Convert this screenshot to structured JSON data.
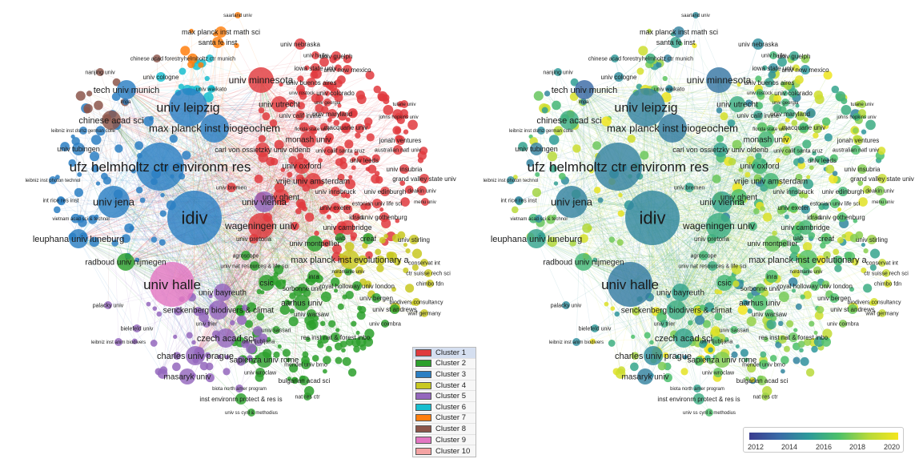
{
  "clusters": [
    {
      "label": "Cluster 1",
      "color": "#e03a3e"
    },
    {
      "label": "Cluster 2",
      "color": "#2ca02c"
    },
    {
      "label": "Cluster 3",
      "color": "#2b7fc3"
    },
    {
      "label": "Cluster 4",
      "color": "#c8c820"
    },
    {
      "label": "Cluster 5",
      "color": "#9467bd"
    },
    {
      "label": "Cluster 6",
      "color": "#17becf"
    },
    {
      "label": "Cluster 7",
      "color": "#ff7f0e"
    },
    {
      "label": "Cluster 8",
      "color": "#8c564b"
    },
    {
      "label": "Cluster 9",
      "color": "#e377c2"
    },
    {
      "label": "Cluster 10",
      "color": "#f4a3a3"
    }
  ],
  "year_legend": {
    "ticks": [
      "2012",
      "2014",
      "2016",
      "2018",
      "2020"
    ],
    "colors": [
      "#3b3d8f",
      "#3a6aa6",
      "#2d9a9a",
      "#4cc06a",
      "#b6d93a",
      "#f4e61d"
    ]
  },
  "nodes": [
    {
      "label": "idiv",
      "cluster": 3,
      "year": 0.32
    },
    {
      "label": "ufz helmholtz ctr environm res",
      "cluster": 3,
      "year": 0.3
    },
    {
      "label": "univ leipzig",
      "cluster": 3,
      "year": 0.3
    },
    {
      "label": "univ halle",
      "cluster": 9,
      "year": 0.27
    },
    {
      "label": "univ jena",
      "cluster": 3,
      "year": 0.3
    },
    {
      "label": "max planck inst biogeochem",
      "cluster": 3,
      "year": 0.28
    },
    {
      "label": "univ minnesota",
      "cluster": 1,
      "year": 0.25
    },
    {
      "label": "wageningen univ",
      "cluster": 1,
      "year": 0.5
    },
    {
      "label": "univ vienna",
      "cluster": 5,
      "year": 0.45
    },
    {
      "label": "max planck inst evolutionary a",
      "cluster": 4,
      "year": 0.62
    },
    {
      "label": "tech univ munich",
      "cluster": 3,
      "year": 0.2
    },
    {
      "label": "chinese acad sci",
      "cluster": 8,
      "year": 0.5
    },
    {
      "label": "leuphana univ luneburg",
      "cluster": 3,
      "year": 0.45
    },
    {
      "label": "radboud univ nijmegen",
      "cluster": 2,
      "year": 0.55
    },
    {
      "label": "senckenberg biodivers & climat",
      "cluster": 5,
      "year": 0.5
    },
    {
      "label": "czech acad sci",
      "cluster": 5,
      "year": 0.45
    },
    {
      "label": "charles univ prague",
      "cluster": 5,
      "year": 0.35
    },
    {
      "label": "univ bayreuth",
      "cluster": 5,
      "year": 0.45
    },
    {
      "label": "univ oxford",
      "cluster": 1,
      "year": 0.55
    },
    {
      "label": "vrije univ amsterdam",
      "cluster": 1,
      "year": 0.55
    },
    {
      "label": "monash univ",
      "cluster": 1,
      "year": 0.55
    },
    {
      "label": "univ ghent",
      "cluster": 1,
      "year": 0.6
    },
    {
      "label": "univ utrecht",
      "cluster": 1,
      "year": 0.5
    },
    {
      "label": "univ cambridge",
      "cluster": 1,
      "year": 0.55
    },
    {
      "label": "univ montpellier",
      "cluster": 2,
      "year": 0.65
    },
    {
      "label": "aarhus univ",
      "cluster": 2,
      "year": 0.6
    },
    {
      "label": "csic",
      "cluster": 2,
      "year": 0.55
    },
    {
      "label": "inra",
      "cluster": 2,
      "year": 0.6
    },
    {
      "label": "sapienza univ rome",
      "cluster": 2,
      "year": 0.7
    },
    {
      "label": "masaryk univ",
      "cluster": 5,
      "year": 0.3
    },
    {
      "label": "carl von ossietzky univ oldenb",
      "cluster": 1,
      "year": 0.45
    },
    {
      "label": "univ tubingen",
      "cluster": 3,
      "year": 0.3
    },
    {
      "label": "max planck inst math sci",
      "cluster": 7,
      "year": 0.3
    },
    {
      "label": "santa fe inst",
      "cluster": 7,
      "year": 0.45
    },
    {
      "label": "univ nebraska",
      "cluster": 1,
      "year": 0.35
    },
    {
      "label": "univ guelph",
      "cluster": 1,
      "year": 0.45
    },
    {
      "label": "iowa state univ",
      "cluster": 1,
      "year": 0.35
    },
    {
      "label": "univ new mexico",
      "cluster": 1,
      "year": 0.4
    },
    {
      "label": "univ buenos aires",
      "cluster": 1,
      "year": 0.45
    },
    {
      "label": "univ colorado",
      "cluster": 1,
      "year": 0.5
    },
    {
      "label": "univ maryland",
      "cluster": 1,
      "year": 0.5
    },
    {
      "label": "univ calif irvine",
      "cluster": 1,
      "year": 0.45
    },
    {
      "label": "macquarie univ",
      "cluster": 1,
      "year": 0.55
    },
    {
      "label": "jonah ventures",
      "cluster": 1,
      "year": 0.8
    },
    {
      "label": "australian natl univ",
      "cluster": 1,
      "year": 0.6
    },
    {
      "label": "univ calif santa cruz",
      "cluster": 1,
      "year": 0.55
    },
    {
      "label": "univ leeds",
      "cluster": 1,
      "year": 0.55
    },
    {
      "label": "univ insubria",
      "cluster": 1,
      "year": 0.7
    },
    {
      "label": "grand valley state univ",
      "cluster": 1,
      "year": 0.85
    },
    {
      "label": "univ edinburgh",
      "cluster": 1,
      "year": 0.55
    },
    {
      "label": "deakin univ",
      "cluster": 1,
      "year": 0.7
    },
    {
      "label": "univ innsbruck",
      "cluster": 1,
      "year": 0.5
    },
    {
      "label": "estonian univ life sci",
      "cluster": 1,
      "year": 0.6
    },
    {
      "label": "univ exeter",
      "cluster": 1,
      "year": 0.6
    },
    {
      "label": "idrad",
      "cluster": 1,
      "year": 0.7
    },
    {
      "label": "univ gothenburg",
      "cluster": 1,
      "year": 0.6
    },
    {
      "label": "uab",
      "cluster": 2,
      "year": 0.55
    },
    {
      "label": "creaf",
      "cluster": 2,
      "year": 0.6
    },
    {
      "label": "univ stirling",
      "cluster": 4,
      "year": 0.75
    },
    {
      "label": "conservat int",
      "cluster": 4,
      "year": 0.85
    },
    {
      "label": "ctr suisse rech sci",
      "cluster": 4,
      "year": 0.85
    },
    {
      "label": "chimbo fdn",
      "cluster": 4,
      "year": 0.9
    },
    {
      "label": "biodivers consultancy",
      "cluster": 4,
      "year": 0.9
    },
    {
      "label": "wwf germany",
      "cluster": 4,
      "year": 0.85
    },
    {
      "label": "royal holloway univ london",
      "cluster": 2,
      "year": 0.6
    },
    {
      "label": "univ bergen",
      "cluster": 2,
      "year": 0.6
    },
    {
      "label": "univ st andrews",
      "cluster": 2,
      "year": 0.65
    },
    {
      "label": "sorbonne univ",
      "cluster": 2,
      "year": 0.65
    },
    {
      "label": "univ warsaw",
      "cluster": 2,
      "year": 0.6
    },
    {
      "label": "univ coimbra",
      "cluster": 2,
      "year": 0.7
    },
    {
      "label": "res inst nat & forest inbo",
      "cluster": 2,
      "year": 0.65
    },
    {
      "label": "univ ljubljana",
      "cluster": 5,
      "year": 0.6
    },
    {
      "label": "univ wroclaw",
      "cluster": 2,
      "year": 0.65
    },
    {
      "label": "mendel univ brno",
      "cluster": 2,
      "year": 0.6
    },
    {
      "label": "bulgarian acad sci",
      "cluster": 2,
      "year": 0.7
    },
    {
      "label": "nat res ctr",
      "cluster": 2,
      "year": 0.75
    },
    {
      "label": "inst environm protect & res is",
      "cluster": 2,
      "year": 0.5
    },
    {
      "label": "univ ss cyril & methodius",
      "cluster": 2,
      "year": 0.6
    },
    {
      "label": "biota north amer program",
      "cluster": 5,
      "year": 0.45
    },
    {
      "label": "leibniz inst anim biodivers",
      "cluster": 5,
      "year": 0.35
    },
    {
      "label": "bielefeld univ",
      "cluster": 5,
      "year": 0.4
    },
    {
      "label": "palacky univ",
      "cluster": 5,
      "year": 0.35
    },
    {
      "label": "univ trier",
      "cluster": 5,
      "year": 0.5
    },
    {
      "label": "univ sassari",
      "cluster": 2,
      "year": 0.6
    },
    {
      "label": "univ pretoria",
      "cluster": 1,
      "year": 0.55
    },
    {
      "label": "agroscope",
      "cluster": 2,
      "year": 0.55
    },
    {
      "label": "univ nat resources & life sci",
      "cluster": 2,
      "year": 0.5
    },
    {
      "label": "univ bremen",
      "cluster": 1,
      "year": 0.45
    },
    {
      "label": "vietnam acad sci & technol",
      "cluster": 3,
      "year": 0.35
    },
    {
      "label": "int rice res inst",
      "cluster": 3,
      "year": 0.3
    },
    {
      "label": "leibniz inst photon technol",
      "cluster": 3,
      "year": 0.35
    },
    {
      "label": "leibniz inst dsmz german colle",
      "cluster": 3,
      "year": 0.35
    },
    {
      "label": "univ cologne",
      "cluster": 6,
      "year": 0.35
    },
    {
      "label": "nanjing univ",
      "cluster": 8,
      "year": 0.4
    },
    {
      "label": "chinese acad forestry",
      "cluster": 8,
      "year": 0.4
    },
    {
      "label": "helmholtz ctr munich",
      "cluster": 6,
      "year": 0.3
    },
    {
      "label": "saarland univ",
      "cluster": 7,
      "year": 0.35
    },
    {
      "label": "univ waikato",
      "cluster": 6,
      "year": 0.35
    },
    {
      "label": "univ haifa",
      "cluster": 1,
      "year": 0.55
    },
    {
      "label": "univ georgia",
      "cluster": 1,
      "year": 0.55
    },
    {
      "label": "johns hopkins univ",
      "cluster": 1,
      "year": 0.55
    },
    {
      "label": "tulane univ",
      "cluster": 1,
      "year": 0.75
    },
    {
      "label": "florida state univ",
      "cluster": 1,
      "year": 0.6
    },
    {
      "label": "univ rostock",
      "cluster": 1,
      "year": 0.55
    },
    {
      "label": "menu univ",
      "cluster": 1,
      "year": 0.65
    },
    {
      "label": "nordmanle univ",
      "cluster": 2,
      "year": 0.55
    },
    {
      "label": "lmpa",
      "cluster": 3,
      "year": 0.3
    }
  ]
}
